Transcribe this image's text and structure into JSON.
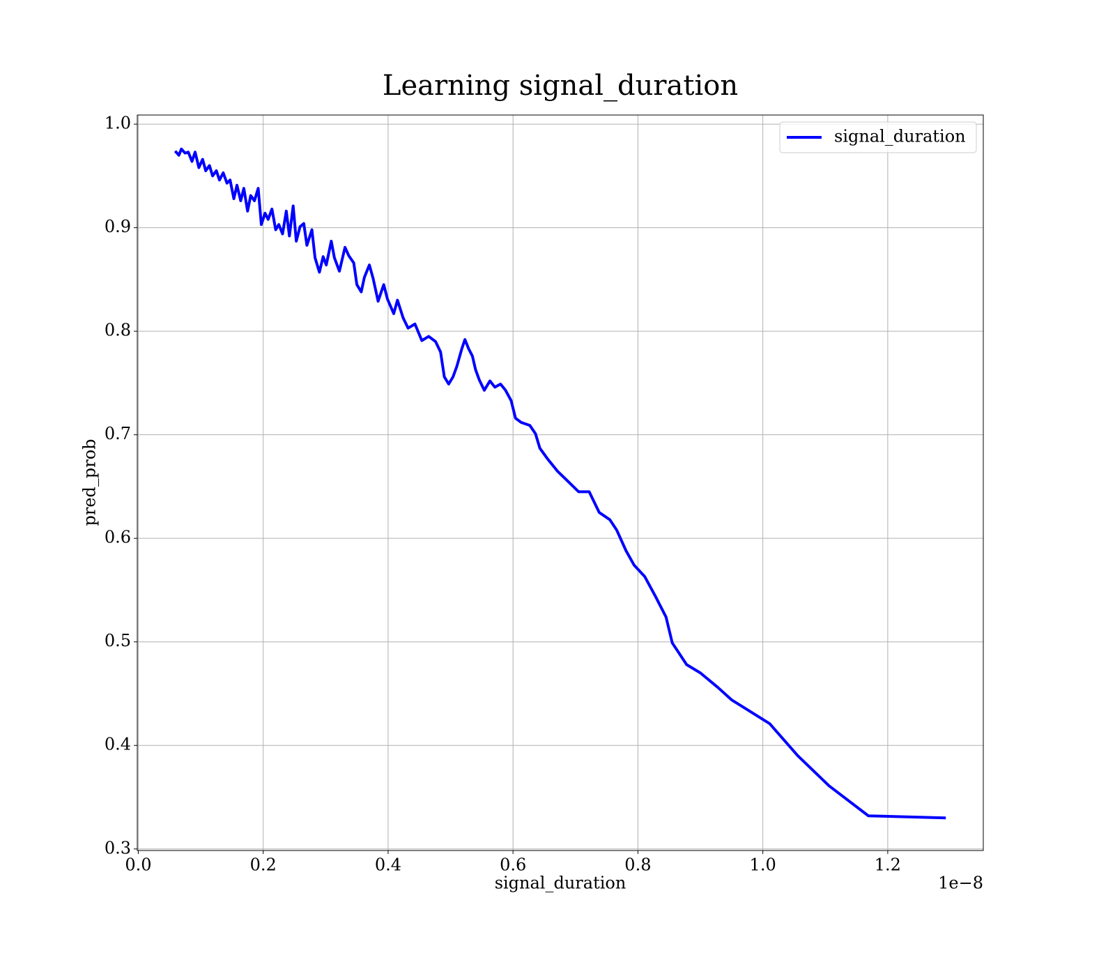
{
  "chart_data": {
    "type": "line",
    "title": "Learning signal_duration",
    "x_label": "signal_duration",
    "y_label": "pred_prob",
    "x_offset_label": "1e−8",
    "x": [
      0.059,
      0.065,
      0.069,
      0.075,
      0.08,
      0.086,
      0.091,
      0.097,
      0.103,
      0.108,
      0.114,
      0.119,
      0.125,
      0.13,
      0.136,
      0.142,
      0.147,
      0.153,
      0.158,
      0.164,
      0.169,
      0.175,
      0.18,
      0.186,
      0.192,
      0.197,
      0.203,
      0.208,
      0.214,
      0.22,
      0.225,
      0.231,
      0.237,
      0.242,
      0.248,
      0.253,
      0.259,
      0.265,
      0.27,
      0.278,
      0.283,
      0.29,
      0.296,
      0.301,
      0.309,
      0.314,
      0.322,
      0.331,
      0.337,
      0.345,
      0.35,
      0.357,
      0.362,
      0.37,
      0.376,
      0.384,
      0.393,
      0.399,
      0.409,
      0.415,
      0.424,
      0.432,
      0.443,
      0.454,
      0.465,
      0.476,
      0.484,
      0.49,
      0.497,
      0.504,
      0.51,
      0.518,
      0.523,
      0.529,
      0.535,
      0.54,
      0.546,
      0.554,
      0.563,
      0.571,
      0.58,
      0.588,
      0.597,
      0.604,
      0.613,
      0.627,
      0.636,
      0.643,
      0.655,
      0.671,
      0.688,
      0.705,
      0.722,
      0.738,
      0.755,
      0.766,
      0.781,
      0.794,
      0.811,
      0.828,
      0.845,
      0.855,
      0.878,
      0.9,
      0.928,
      0.95,
      1.011,
      1.056,
      1.106,
      1.169,
      1.293
    ],
    "series": [
      {
        "name": "signal_duration",
        "color": "#0000ff",
        "values": [
          0.974,
          0.97,
          0.976,
          0.972,
          0.973,
          0.964,
          0.973,
          0.958,
          0.966,
          0.955,
          0.96,
          0.95,
          0.955,
          0.946,
          0.953,
          0.943,
          0.946,
          0.928,
          0.941,
          0.926,
          0.938,
          0.916,
          0.931,
          0.926,
          0.938,
          0.903,
          0.914,
          0.908,
          0.918,
          0.898,
          0.903,
          0.894,
          0.916,
          0.892,
          0.921,
          0.887,
          0.901,
          0.904,
          0.883,
          0.898,
          0.871,
          0.857,
          0.872,
          0.864,
          0.887,
          0.871,
          0.858,
          0.881,
          0.873,
          0.866,
          0.845,
          0.838,
          0.852,
          0.864,
          0.851,
          0.829,
          0.845,
          0.831,
          0.817,
          0.83,
          0.813,
          0.803,
          0.807,
          0.791,
          0.795,
          0.79,
          0.78,
          0.756,
          0.749,
          0.756,
          0.766,
          0.783,
          0.792,
          0.783,
          0.776,
          0.763,
          0.753,
          0.743,
          0.752,
          0.746,
          0.749,
          0.743,
          0.733,
          0.716,
          0.712,
          0.709,
          0.701,
          0.687,
          0.677,
          0.665,
          0.655,
          0.645,
          0.645,
          0.625,
          0.618,
          0.608,
          0.588,
          0.574,
          0.563,
          0.544,
          0.524,
          0.499,
          0.478,
          0.47,
          0.456,
          0.444,
          0.421,
          0.39,
          0.361,
          0.332,
          0.33
        ]
      }
    ],
    "xlim": [
      -0.0016,
      1.353
    ],
    "ylim": [
      0.2985,
      1.0088
    ],
    "xticks": [
      {
        "value": 0,
        "label": "0.0"
      },
      0.2,
      0.4,
      0.6,
      0.8,
      {
        "value": 1,
        "label": "1.0"
      },
      1.2
    ],
    "yticks": [
      0.3,
      0.4,
      0.5,
      0.6,
      0.7,
      0.8,
      0.9,
      {
        "value": 1,
        "label": "1.0"
      }
    ],
    "grid": true,
    "legend": "upper right"
  }
}
